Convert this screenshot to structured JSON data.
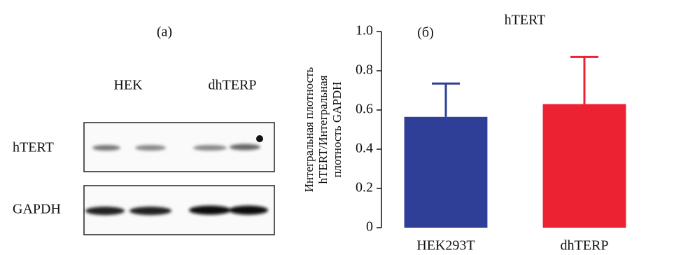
{
  "panel_a": {
    "label": "(a)",
    "lanes": [
      "HEK",
      "dhTERP"
    ],
    "rows": [
      "hTERT",
      "GAPDH"
    ]
  },
  "chart_data": {
    "type": "bar",
    "title": "hTERT",
    "panel_label": "(б)",
    "ylabel_lines": [
      "Интегральная плотность",
      "hTERT/Интегральная",
      "плотность GAPDH"
    ],
    "categories": [
      "HEK293T",
      "dhTERP"
    ],
    "values": [
      0.565,
      0.63
    ],
    "errors": [
      0.17,
      0.24
    ],
    "colors": [
      "#2f3f97",
      "#ec2232"
    ],
    "ylim": [
      0,
      1
    ],
    "yticks": [
      0,
      0.2,
      0.4,
      0.6,
      0.8,
      {
        "value": 1,
        "label": "1.0"
      }
    ]
  }
}
